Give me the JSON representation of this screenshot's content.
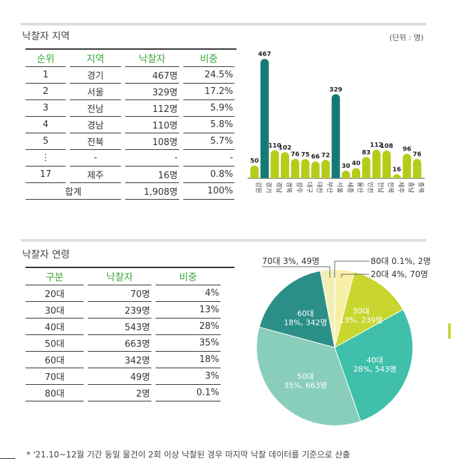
{
  "region": {
    "title": "낙찰자 지역",
    "unit": "(단위 : 명)",
    "headers": [
      "순위",
      "지역",
      "낙찰자",
      "비중"
    ],
    "rows": [
      [
        "1",
        "경기",
        "467명",
        "24.5%"
      ],
      [
        "2",
        "서울",
        "329명",
        "17.2%"
      ],
      [
        "3",
        "전남",
        "112명",
        "5.9%"
      ],
      [
        "4",
        "경남",
        "110명",
        "5.8%"
      ],
      [
        "5",
        "전북",
        "108명",
        "5.7%"
      ],
      [
        "⋮",
        "-",
        "-",
        "-"
      ],
      [
        "17",
        "제주",
        "16명",
        "0.8%"
      ]
    ],
    "total": [
      "합계",
      "1,908명",
      "100%"
    ]
  },
  "age": {
    "title": "낙찰자 연령",
    "headers": [
      "구분",
      "낙찰자",
      "비중"
    ],
    "rows": [
      [
        "20대",
        "70명",
        "4%"
      ],
      [
        "30대",
        "239명",
        "13%"
      ],
      [
        "40대",
        "543명",
        "28%"
      ],
      [
        "50대",
        "663명",
        "35%"
      ],
      [
        "60대",
        "342명",
        "18%"
      ],
      [
        "70대",
        "49명",
        "3%"
      ],
      [
        "80대",
        "2명",
        "0.1%"
      ]
    ]
  },
  "footnote": "* '21.10~12월 기간 동일 물건이 2회 이상 낙찰된 경우 마지막 낙찰 데이터를 기준으로 산출",
  "chart_data": [
    {
      "type": "bar",
      "categories": [
        "강원",
        "경기",
        "경남",
        "경북",
        "광주",
        "대구",
        "대전",
        "부산",
        "서울",
        "세종",
        "울산",
        "인천",
        "전남",
        "전북",
        "제주",
        "충남",
        "충북"
      ],
      "values": [
        50,
        467,
        110,
        102,
        76,
        75,
        66,
        72,
        329,
        30,
        40,
        83,
        112,
        108,
        16,
        96,
        76
      ],
      "highlight": [
        "경기",
        "서울"
      ],
      "colors": {
        "normal": "#b6cc1a",
        "highlight": "#167a74"
      }
    },
    {
      "type": "pie",
      "slices": [
        {
          "label": "80대",
          "pct": "0.1%",
          "count": "2명",
          "value": 0.1,
          "color": "#e8e4a0"
        },
        {
          "label": "20대",
          "pct": "4%",
          "count": "70명",
          "value": 4,
          "color": "#f8efa6"
        },
        {
          "label": "30대",
          "pct": "13%",
          "count": "239명",
          "value": 13,
          "color": "#c9d630"
        },
        {
          "label": "40대",
          "pct": "28%",
          "count": "543명",
          "value": 28,
          "color": "#40c0aa"
        },
        {
          "label": "50대",
          "pct": "35%",
          "count": "663명",
          "value": 35,
          "color": "#88cebb"
        },
        {
          "label": "60대",
          "pct": "18%",
          "count": "342명",
          "value": 18,
          "color": "#2b8f88"
        },
        {
          "label": "70대",
          "pct": "3%",
          "count": "49명",
          "value": 3,
          "color": "#f3efb4"
        }
      ]
    }
  ]
}
